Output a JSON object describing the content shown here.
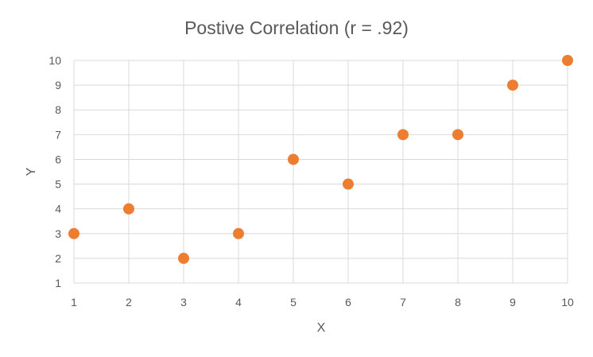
{
  "chart_data": {
    "type": "scatter",
    "title": "Postive Correlation (r = .92)",
    "xlabel": "X",
    "ylabel": "Y",
    "xlim": [
      1,
      10
    ],
    "ylim": [
      1,
      10
    ],
    "xticks": [
      1,
      2,
      3,
      4,
      5,
      6,
      7,
      8,
      9,
      10
    ],
    "yticks": [
      1,
      2,
      3,
      4,
      5,
      6,
      7,
      8,
      9,
      10
    ],
    "grid": true,
    "series": [
      {
        "color": "#ed7d31",
        "points": [
          {
            "x": 1,
            "y": 3
          },
          {
            "x": 2,
            "y": 4
          },
          {
            "x": 3,
            "y": 2
          },
          {
            "x": 4,
            "y": 3
          },
          {
            "x": 5,
            "y": 6
          },
          {
            "x": 6,
            "y": 5
          },
          {
            "x": 7,
            "y": 7
          },
          {
            "x": 8,
            "y": 7
          },
          {
            "x": 9,
            "y": 9
          },
          {
            "x": 10,
            "y": 10
          }
        ]
      }
    ]
  }
}
